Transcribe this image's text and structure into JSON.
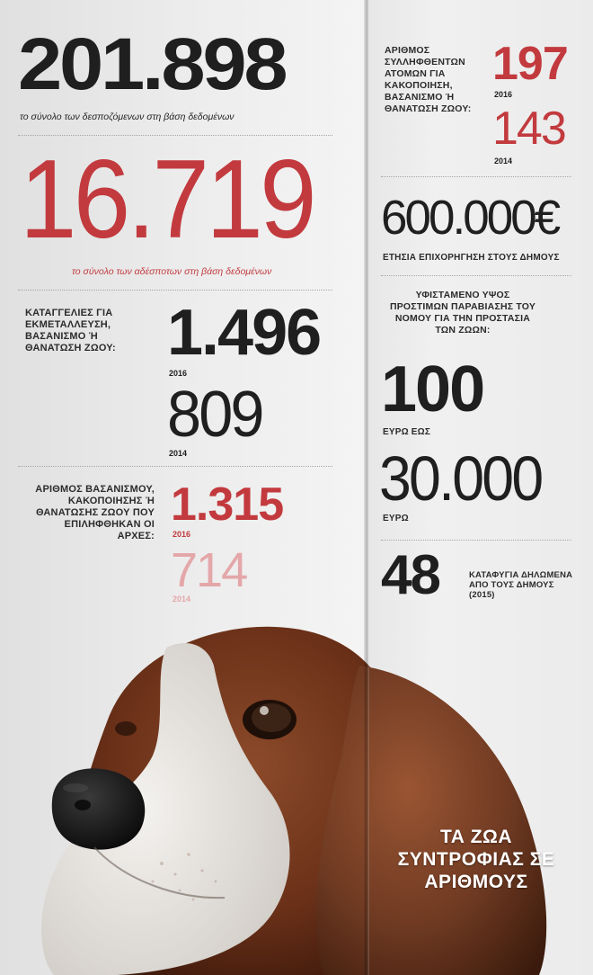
{
  "stats": {
    "owned_total": {
      "value": "201.898",
      "caption": "το σύνολο των δεσποζόμενων στη βάση δεδομένων"
    },
    "stray_total": {
      "value": "16.719",
      "caption": "το σύνολο των αδέσποτων στη βάση δεδομένων"
    },
    "complaints": {
      "label": "ΚΑΤΑΓΓΕΛΙΕΣ ΓΙΑ ΕΚΜΕΤΑΛΛΕΥΣΗ, ΒΑΣΑΝΙΣΜΟ Ή ΘΑΝΑΤΩΣΗ ΖΩΟΥ:",
      "value_2016": "1.496",
      "year_2016": "2016",
      "value_2014": "809",
      "year_2014": "2014"
    },
    "handled": {
      "label": "ΑΡΙΘΜΟΣ ΒΑΣΑΝΙΣΜΟΥ, ΚΑΚΟΠΟΙΗΣΗΣ Ή ΘΑΝΑΤΩΣΗΣ ΖΩΟΥ ΠΟΥ ΕΠΙΛΗΦΘΗΚΑΝ ΟΙ ΑΡΧΕΣ:",
      "value_2016": "1.315",
      "year_2016": "2016",
      "value_2014": "714",
      "year_2014": "2014"
    },
    "arrested": {
      "label": "ΑΡΙΘΜΟΣ ΣΥΛΛΗΦΘΕΝΤΩΝ ΑΤΟΜΩΝ ΓΙΑ ΚΑΚΟΠΟΙΗΣΗ, ΒΑΣΑΝΙΣΜΟ Ή ΘΑΝΑΤΩΣΗ ΖΩΟΥ:",
      "value_2016": "197",
      "year_2016": "2016",
      "value_2014": "143",
      "year_2014": "2014"
    },
    "grant": {
      "value": "600.000€",
      "caption": "ΕΤΗΣΙΑ ΕΠΙΧΟΡΗΓΗΣΗ ΣΤΟΥΣ ΔΗΜΟΥΣ"
    },
    "fines": {
      "label": "ΥΦΙΣΤΑΜΕΝΟ ΥΨΟΣ ΠΡΟΣΤΙΜΩΝ ΠΑΡΑΒΙΑΣΗΣ ΤΟΥ ΝΟΜΟΥ ΓΙΑ ΤΗΝ ΠΡΟΣΤΑΣΙΑ ΤΩΝ ΖΩΩΝ:",
      "min": "100",
      "min_caption": "ΕΥΡΩ ΕΩΣ",
      "max": "30.000",
      "max_caption": "ΕΥΡΩ"
    },
    "shelters": {
      "value": "48",
      "caption": "ΚΑΤΑΦΥΓΙΑ ΔΗΛΩΜΕΝΑ ΑΠΟ ΤΟΥΣ ΔΗΜΟΥΣ (2015)"
    }
  },
  "title": "ΤΑ ΖΩΑ ΣΥΝΤΡΟΦΙΑΣ ΣΕ ΑΡΙΘΜΟΥΣ",
  "colors": {
    "red": "#c23a3e",
    "pink": "#e4a7a9",
    "dark": "#1f1f1f"
  }
}
